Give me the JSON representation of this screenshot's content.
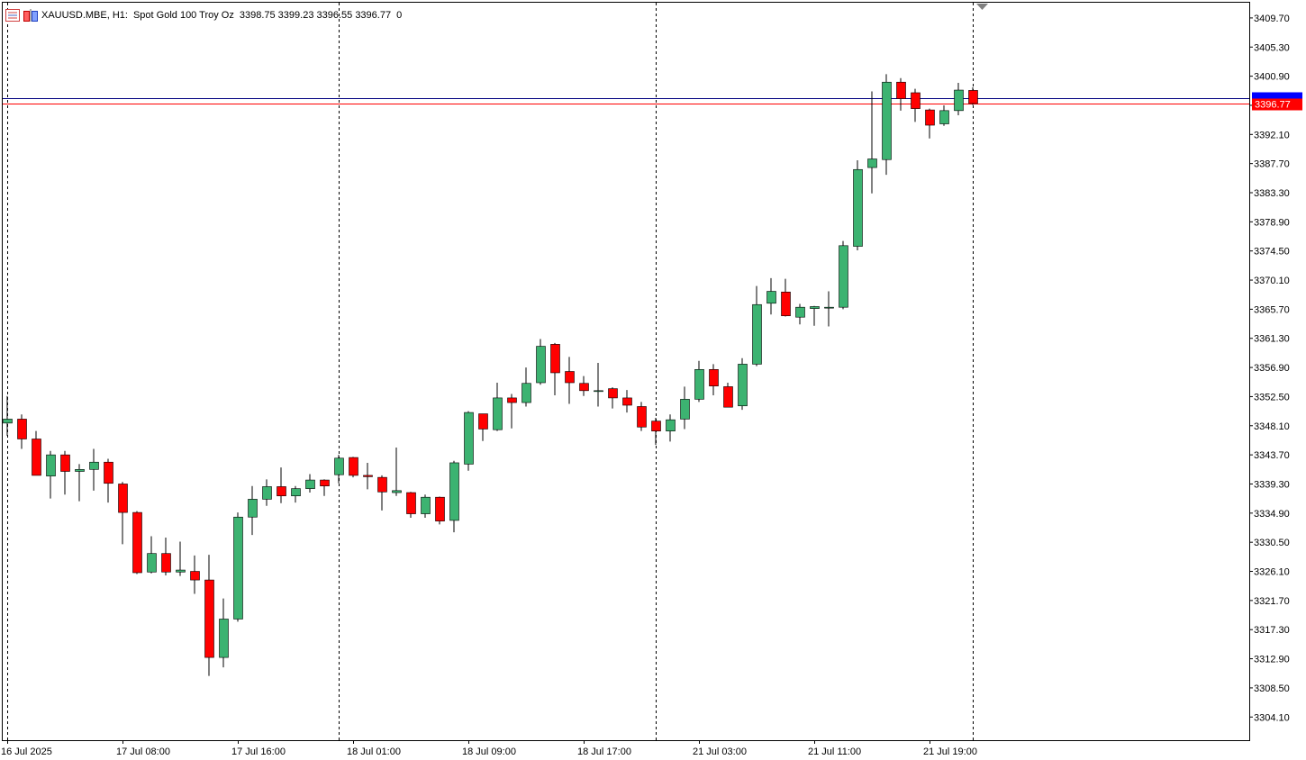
{
  "header": {
    "symbol": "XAUUSD.MBE, H1:",
    "description": "Spot Gold 100 Troy Oz",
    "ohlc": "3398.75 3399.23 3396.55 3396.77",
    "volume": "0"
  },
  "colors": {
    "bull": "#3cb371",
    "bear": "#ff0000",
    "grid": "#000000",
    "bid_line": "#ff0000",
    "ask_line": "#000080",
    "bid_label_bg": "#ff0000",
    "ask_label_bg": "#0000ff"
  },
  "chart_data": {
    "type": "candlestick",
    "timeframe": "H1",
    "ylim": [
      3300.6,
      3412.0
    ],
    "y_ticks": [
      "3409.70",
      "3405.30",
      "3400.90",
      "3396.50",
      "3392.10",
      "3387.70",
      "3383.30",
      "3378.90",
      "3374.50",
      "3370.10",
      "3365.70",
      "3361.30",
      "3356.90",
      "3352.50",
      "3348.10",
      "3343.70",
      "3339.30",
      "3334.90",
      "3330.50",
      "3326.10",
      "3321.70",
      "3317.30",
      "3312.90",
      "3308.50",
      "3304.10"
    ],
    "x_labels": [
      {
        "label": "16 Jul 2025",
        "bar": 0
      },
      {
        "label": "17 Jul 08:00",
        "bar": 8
      },
      {
        "label": "17 Jul 16:00",
        "bar": 16
      },
      {
        "label": "18 Jul 01:00",
        "bar": 24
      },
      {
        "label": "18 Jul 09:00",
        "bar": 32
      },
      {
        "label": "18 Jul 17:00",
        "bar": 40
      },
      {
        "label": "21 Jul 03:00",
        "bar": 48
      },
      {
        "label": "21 Jul 11:00",
        "bar": 56
      },
      {
        "label": "21 Jul 19:00",
        "bar": 64
      }
    ],
    "day_separators": [
      0,
      23,
      45,
      67
    ],
    "bid": 3396.77,
    "bid_label": "3396.77",
    "ask": 3397.6,
    "candles": [
      {
        "o": 3348.5,
        "h": 3352.6,
        "l": 3346.6,
        "c": 3349.1
      },
      {
        "o": 3349.1,
        "h": 3349.8,
        "l": 3344.6,
        "c": 3346.1
      },
      {
        "o": 3346.1,
        "h": 3347.3,
        "l": 3341.0,
        "c": 3340.6
      },
      {
        "o": 3340.5,
        "h": 3344.3,
        "l": 3337.1,
        "c": 3343.7
      },
      {
        "o": 3343.7,
        "h": 3344.3,
        "l": 3337.7,
        "c": 3341.2
      },
      {
        "o": 3341.2,
        "h": 3342.3,
        "l": 3336.7,
        "c": 3341.5
      },
      {
        "o": 3341.5,
        "h": 3344.6,
        "l": 3338.3,
        "c": 3342.6
      },
      {
        "o": 3342.6,
        "h": 3343.1,
        "l": 3336.5,
        "c": 3339.4
      },
      {
        "o": 3339.3,
        "h": 3339.6,
        "l": 3330.2,
        "c": 3335.0
      },
      {
        "o": 3335.0,
        "h": 3335.2,
        "l": 3325.7,
        "c": 3325.9
      },
      {
        "o": 3326.0,
        "h": 3331.4,
        "l": 3325.8,
        "c": 3328.8
      },
      {
        "o": 3328.8,
        "h": 3331.2,
        "l": 3325.5,
        "c": 3326.0
      },
      {
        "o": 3326.0,
        "h": 3330.6,
        "l": 3325.4,
        "c": 3326.3
      },
      {
        "o": 3326.1,
        "h": 3328.5,
        "l": 3322.7,
        "c": 3324.8
      },
      {
        "o": 3324.8,
        "h": 3328.6,
        "l": 3310.3,
        "c": 3313.1
      },
      {
        "o": 3313.1,
        "h": 3322.0,
        "l": 3311.6,
        "c": 3318.9
      },
      {
        "o": 3318.9,
        "h": 3335.0,
        "l": 3318.5,
        "c": 3334.3
      },
      {
        "o": 3334.3,
        "h": 3339.0,
        "l": 3331.6,
        "c": 3337.0
      },
      {
        "o": 3337.0,
        "h": 3340.0,
        "l": 3336.0,
        "c": 3338.9
      },
      {
        "o": 3338.9,
        "h": 3341.8,
        "l": 3336.4,
        "c": 3337.5
      },
      {
        "o": 3337.5,
        "h": 3339.0,
        "l": 3336.5,
        "c": 3338.6
      },
      {
        "o": 3338.6,
        "h": 3340.8,
        "l": 3338.0,
        "c": 3339.9
      },
      {
        "o": 3339.9,
        "h": 3340.0,
        "l": 3337.5,
        "c": 3339.0
      },
      {
        "o": 3340.7,
        "h": 3343.7,
        "l": 3339.4,
        "c": 3343.2
      },
      {
        "o": 3343.3,
        "h": 3343.4,
        "l": 3340.3,
        "c": 3340.6
      },
      {
        "o": 3340.6,
        "h": 3342.5,
        "l": 3338.5,
        "c": 3340.4
      },
      {
        "o": 3340.3,
        "h": 3340.6,
        "l": 3335.3,
        "c": 3338.1
      },
      {
        "o": 3338.0,
        "h": 3344.8,
        "l": 3337.5,
        "c": 3338.3
      },
      {
        "o": 3338.0,
        "h": 3338.1,
        "l": 3334.2,
        "c": 3334.8
      },
      {
        "o": 3334.8,
        "h": 3337.7,
        "l": 3334.2,
        "c": 3337.3
      },
      {
        "o": 3337.3,
        "h": 3337.4,
        "l": 3333.2,
        "c": 3333.7
      },
      {
        "o": 3333.8,
        "h": 3342.8,
        "l": 3332.0,
        "c": 3342.5
      },
      {
        "o": 3342.3,
        "h": 3350.3,
        "l": 3341.3,
        "c": 3350.1
      },
      {
        "o": 3349.9,
        "h": 3349.9,
        "l": 3345.8,
        "c": 3347.6
      },
      {
        "o": 3347.5,
        "h": 3354.6,
        "l": 3347.3,
        "c": 3352.3
      },
      {
        "o": 3352.3,
        "h": 3352.9,
        "l": 3347.7,
        "c": 3351.6
      },
      {
        "o": 3351.6,
        "h": 3356.9,
        "l": 3351.0,
        "c": 3354.5
      },
      {
        "o": 3354.6,
        "h": 3361.2,
        "l": 3354.3,
        "c": 3360.1
      },
      {
        "o": 3360.4,
        "h": 3360.6,
        "l": 3352.7,
        "c": 3356.1
      },
      {
        "o": 3356.3,
        "h": 3358.5,
        "l": 3351.4,
        "c": 3354.6
      },
      {
        "o": 3354.5,
        "h": 3355.6,
        "l": 3352.6,
        "c": 3353.4
      },
      {
        "o": 3353.4,
        "h": 3357.6,
        "l": 3351.0,
        "c": 3353.4
      },
      {
        "o": 3353.7,
        "h": 3353.9,
        "l": 3350.7,
        "c": 3352.3
      },
      {
        "o": 3352.3,
        "h": 3353.5,
        "l": 3350.1,
        "c": 3351.2
      },
      {
        "o": 3351.0,
        "h": 3351.7,
        "l": 3347.3,
        "c": 3347.9
      },
      {
        "o": 3348.8,
        "h": 3349.3,
        "l": 3345.2,
        "c": 3347.3
      },
      {
        "o": 3347.3,
        "h": 3349.8,
        "l": 3345.7,
        "c": 3349.0
      },
      {
        "o": 3349.1,
        "h": 3354.0,
        "l": 3347.6,
        "c": 3352.1
      },
      {
        "o": 3352.1,
        "h": 3357.9,
        "l": 3351.7,
        "c": 3356.6
      },
      {
        "o": 3356.6,
        "h": 3357.4,
        "l": 3352.7,
        "c": 3354.1
      },
      {
        "o": 3354.0,
        "h": 3354.6,
        "l": 3350.9,
        "c": 3350.9
      },
      {
        "o": 3351.1,
        "h": 3358.3,
        "l": 3350.5,
        "c": 3357.4
      },
      {
        "o": 3357.4,
        "h": 3369.2,
        "l": 3357.1,
        "c": 3366.4
      },
      {
        "o": 3366.6,
        "h": 3370.4,
        "l": 3364.9,
        "c": 3368.4
      },
      {
        "o": 3368.3,
        "h": 3370.3,
        "l": 3364.6,
        "c": 3364.7
      },
      {
        "o": 3364.5,
        "h": 3366.5,
        "l": 3363.4,
        "c": 3366.0
      },
      {
        "o": 3365.8,
        "h": 3366.2,
        "l": 3363.2,
        "c": 3366.1
      },
      {
        "o": 3366.0,
        "h": 3368.4,
        "l": 3363.1,
        "c": 3366.0
      },
      {
        "o": 3366.0,
        "h": 3376.0,
        "l": 3365.7,
        "c": 3375.3
      },
      {
        "o": 3375.2,
        "h": 3388.2,
        "l": 3374.6,
        "c": 3386.8
      },
      {
        "o": 3387.1,
        "h": 3398.6,
        "l": 3383.2,
        "c": 3388.4
      },
      {
        "o": 3388.3,
        "h": 3401.2,
        "l": 3386.0,
        "c": 3400.0
      },
      {
        "o": 3400.0,
        "h": 3400.6,
        "l": 3395.7,
        "c": 3397.5
      },
      {
        "o": 3398.4,
        "h": 3399.0,
        "l": 3394.0,
        "c": 3396.0
      },
      {
        "o": 3395.8,
        "h": 3396.0,
        "l": 3391.5,
        "c": 3393.5
      },
      {
        "o": 3393.7,
        "h": 3396.5,
        "l": 3393.4,
        "c": 3395.7
      },
      {
        "o": 3395.7,
        "h": 3399.9,
        "l": 3395.0,
        "c": 3398.8
      },
      {
        "o": 3398.75,
        "h": 3399.23,
        "l": 3396.55,
        "c": 3396.77
      }
    ]
  }
}
